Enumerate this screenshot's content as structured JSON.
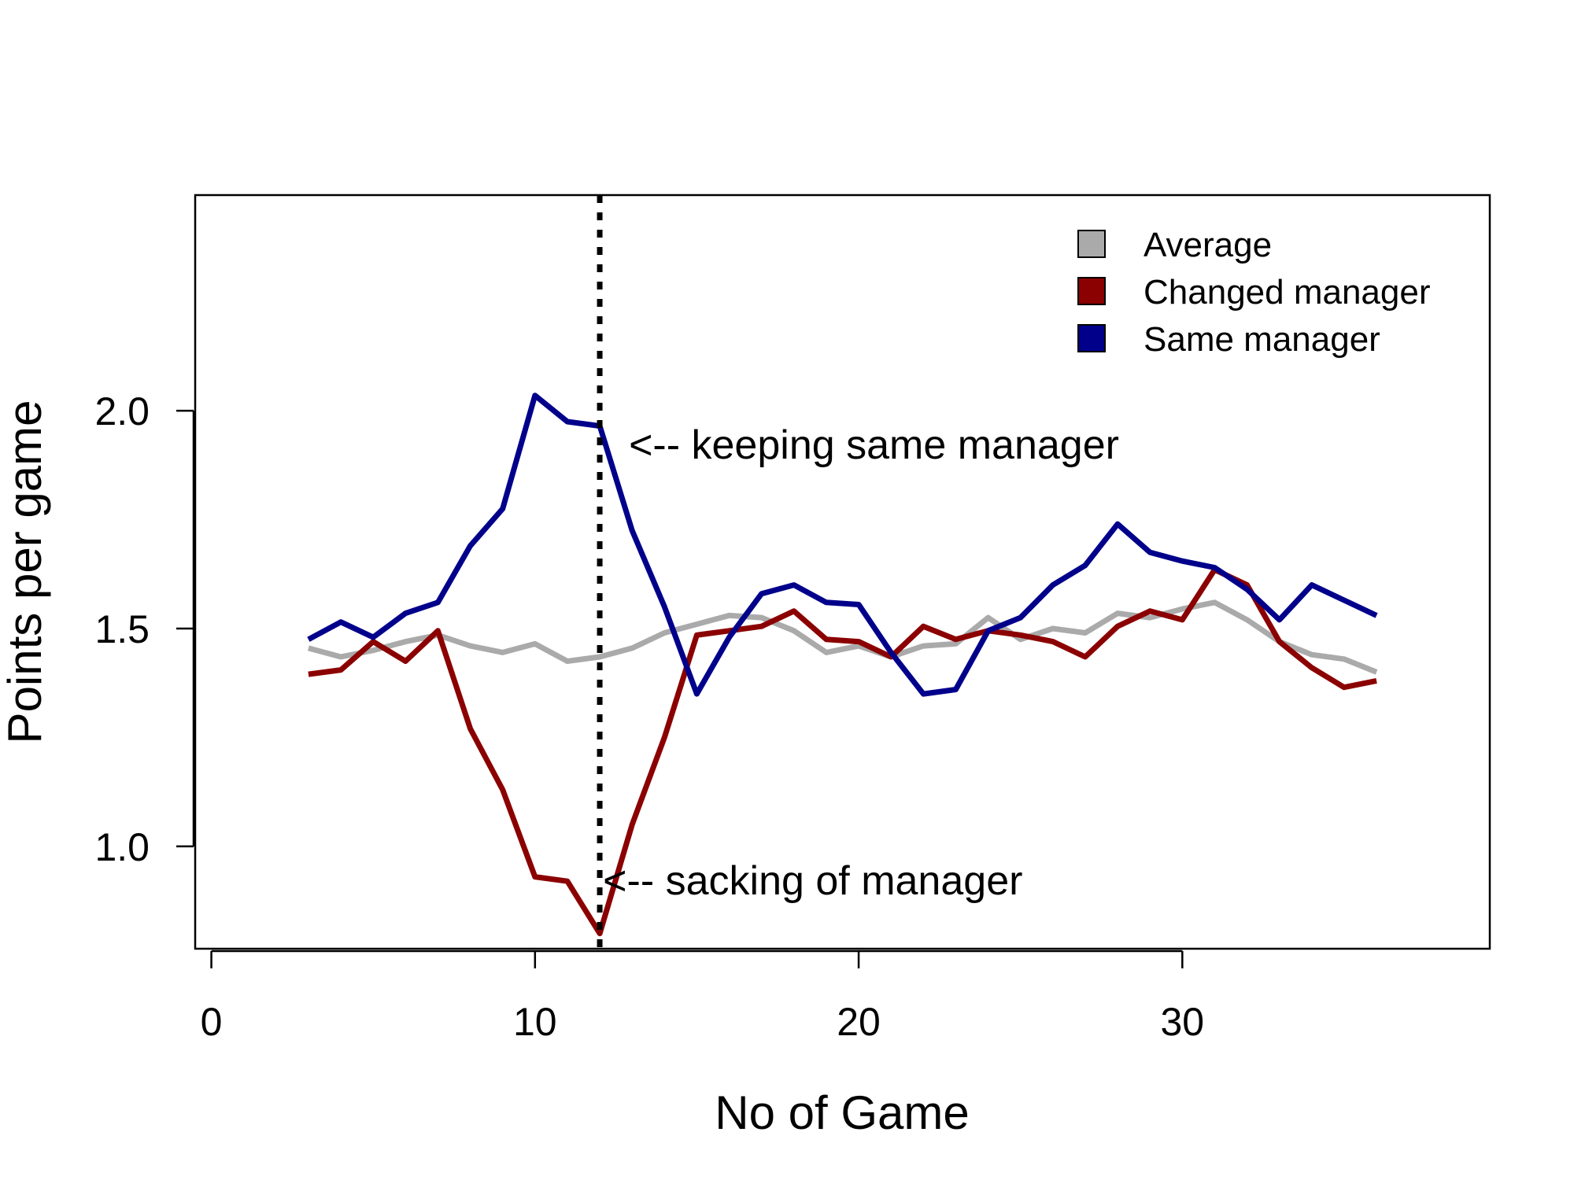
{
  "chart_data": {
    "type": "line",
    "xlabel": "No of Game",
    "ylabel": "Points per game",
    "xlim": [
      -0.5,
      39.5
    ],
    "ylim": [
      0.765,
      2.495
    ],
    "xticks": [
      0,
      10,
      20,
      30
    ],
    "yticks": [
      1.0,
      1.5,
      2.0
    ],
    "ytick_labels": [
      "1.0",
      "1.5",
      "2.0"
    ],
    "legend_position": "top-right",
    "x": [
      3,
      4,
      5,
      6,
      7,
      8,
      9,
      10,
      11,
      12,
      13,
      14,
      15,
      16,
      17,
      18,
      19,
      20,
      21,
      22,
      23,
      24,
      25,
      26,
      27,
      28,
      29,
      30,
      31,
      32,
      33,
      34,
      35,
      36
    ],
    "series": [
      {
        "name": "Average",
        "color": "#aaaaaa",
        "values": [
          1.455,
          1.435,
          1.45,
          1.47,
          1.485,
          1.46,
          1.445,
          1.465,
          1.425,
          1.435,
          1.455,
          1.49,
          1.51,
          1.53,
          1.525,
          1.495,
          1.445,
          1.46,
          1.435,
          1.46,
          1.465,
          1.525,
          1.475,
          1.5,
          1.49,
          1.535,
          1.525,
          1.545,
          1.56,
          1.52,
          1.47,
          1.44,
          1.43,
          1.4
        ]
      },
      {
        "name": "Changed manager",
        "color": "#8b0000",
        "values": [
          1.395,
          1.405,
          1.47,
          1.425,
          1.495,
          1.27,
          1.13,
          0.93,
          0.92,
          0.8,
          1.05,
          1.25,
          1.485,
          1.495,
          1.505,
          1.54,
          1.475,
          1.47,
          1.435,
          1.505,
          1.475,
          1.495,
          1.485,
          1.47,
          1.435,
          1.505,
          1.54,
          1.52,
          1.635,
          1.6,
          1.47,
          1.41,
          1.365,
          1.38
        ]
      },
      {
        "name": "Same manager",
        "color": "#00008b",
        "values": [
          1.475,
          1.515,
          1.48,
          1.535,
          1.56,
          1.69,
          1.775,
          2.035,
          1.975,
          1.965,
          1.725,
          1.55,
          1.35,
          1.48,
          1.58,
          1.6,
          1.56,
          1.555,
          1.445,
          1.35,
          1.36,
          1.495,
          1.525,
          1.6,
          1.645,
          1.74,
          1.675,
          1.655,
          1.64,
          1.59,
          1.52,
          1.6,
          1.565,
          1.53
        ]
      }
    ],
    "vline": {
      "x": 12,
      "style": "dotted",
      "color": "#000000"
    },
    "annotations": [
      {
        "text": "<-- keeping same manager",
        "x": 12.9,
        "y": 1.89
      },
      {
        "text": "<-- sacking of manager",
        "x": 12.1,
        "y": 0.89
      }
    ]
  }
}
